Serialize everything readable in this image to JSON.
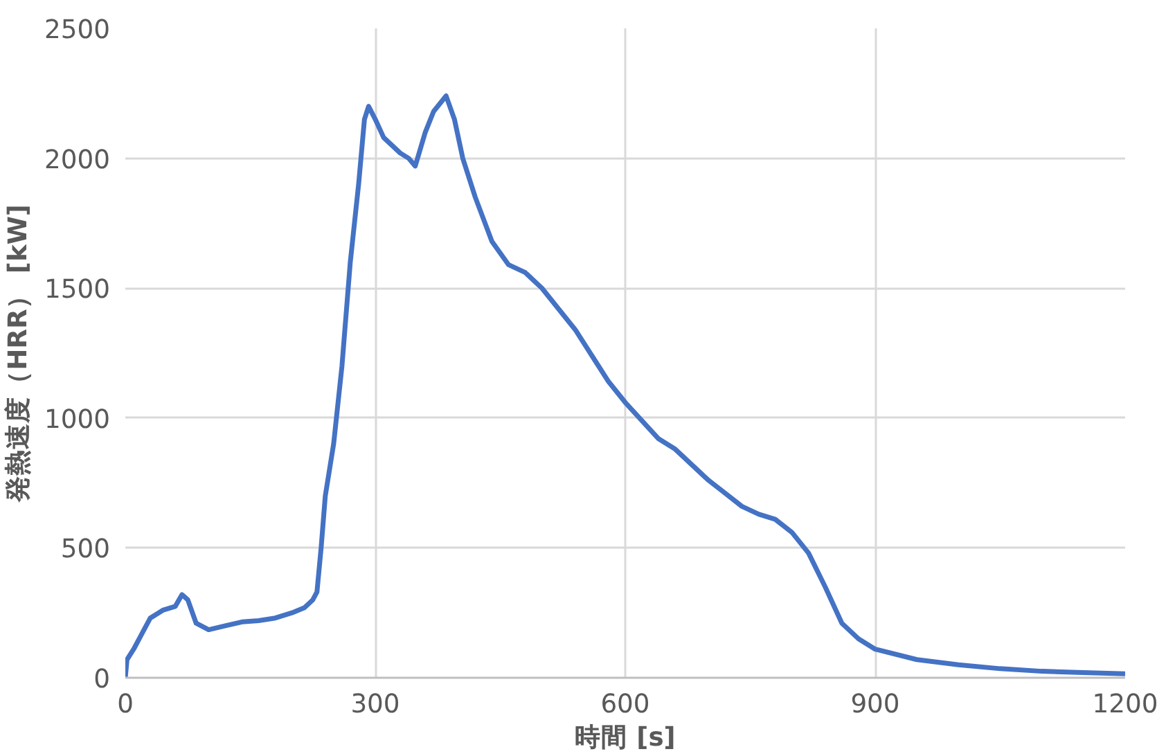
{
  "chart_data": {
    "type": "line",
    "xlabel": "時間 [s]",
    "ylabel": "発熱速度（HRR） [kW]",
    "xlim": [
      0,
      1200
    ],
    "ylim": [
      0,
      2500
    ],
    "xticks": [
      0,
      300,
      600,
      900,
      1200
    ],
    "yticks": [
      0,
      500,
      1000,
      1500,
      2000,
      2500
    ],
    "grid": true,
    "series": [
      {
        "color": "#4472c4",
        "x": [
          0,
          2,
          10,
          20,
          30,
          45,
          60,
          68,
          75,
          85,
          100,
          120,
          140,
          160,
          180,
          200,
          215,
          225,
          230,
          235,
          240,
          250,
          260,
          270,
          280,
          287,
          292,
          300,
          310,
          320,
          330,
          340,
          348,
          360,
          370,
          385,
          395,
          405,
          420,
          440,
          460,
          480,
          500,
          520,
          540,
          560,
          580,
          600,
          620,
          640,
          660,
          680,
          700,
          720,
          740,
          760,
          780,
          800,
          820,
          840,
          860,
          880,
          900,
          950,
          1000,
          1050,
          1100,
          1150,
          1200
        ],
        "values": [
          0,
          70,
          110,
          170,
          230,
          260,
          275,
          320,
          300,
          210,
          185,
          200,
          215,
          220,
          230,
          250,
          270,
          300,
          330,
          500,
          700,
          900,
          1200,
          1600,
          1900,
          2150,
          2200,
          2150,
          2080,
          2050,
          2020,
          2000,
          1970,
          2100,
          2180,
          2240,
          2150,
          2000,
          1850,
          1680,
          1590,
          1560,
          1500,
          1420,
          1340,
          1240,
          1140,
          1060,
          990,
          920,
          880,
          820,
          760,
          710,
          660,
          630,
          610,
          560,
          480,
          350,
          210,
          150,
          110,
          70,
          50,
          35,
          25,
          20,
          15
        ]
      }
    ]
  }
}
